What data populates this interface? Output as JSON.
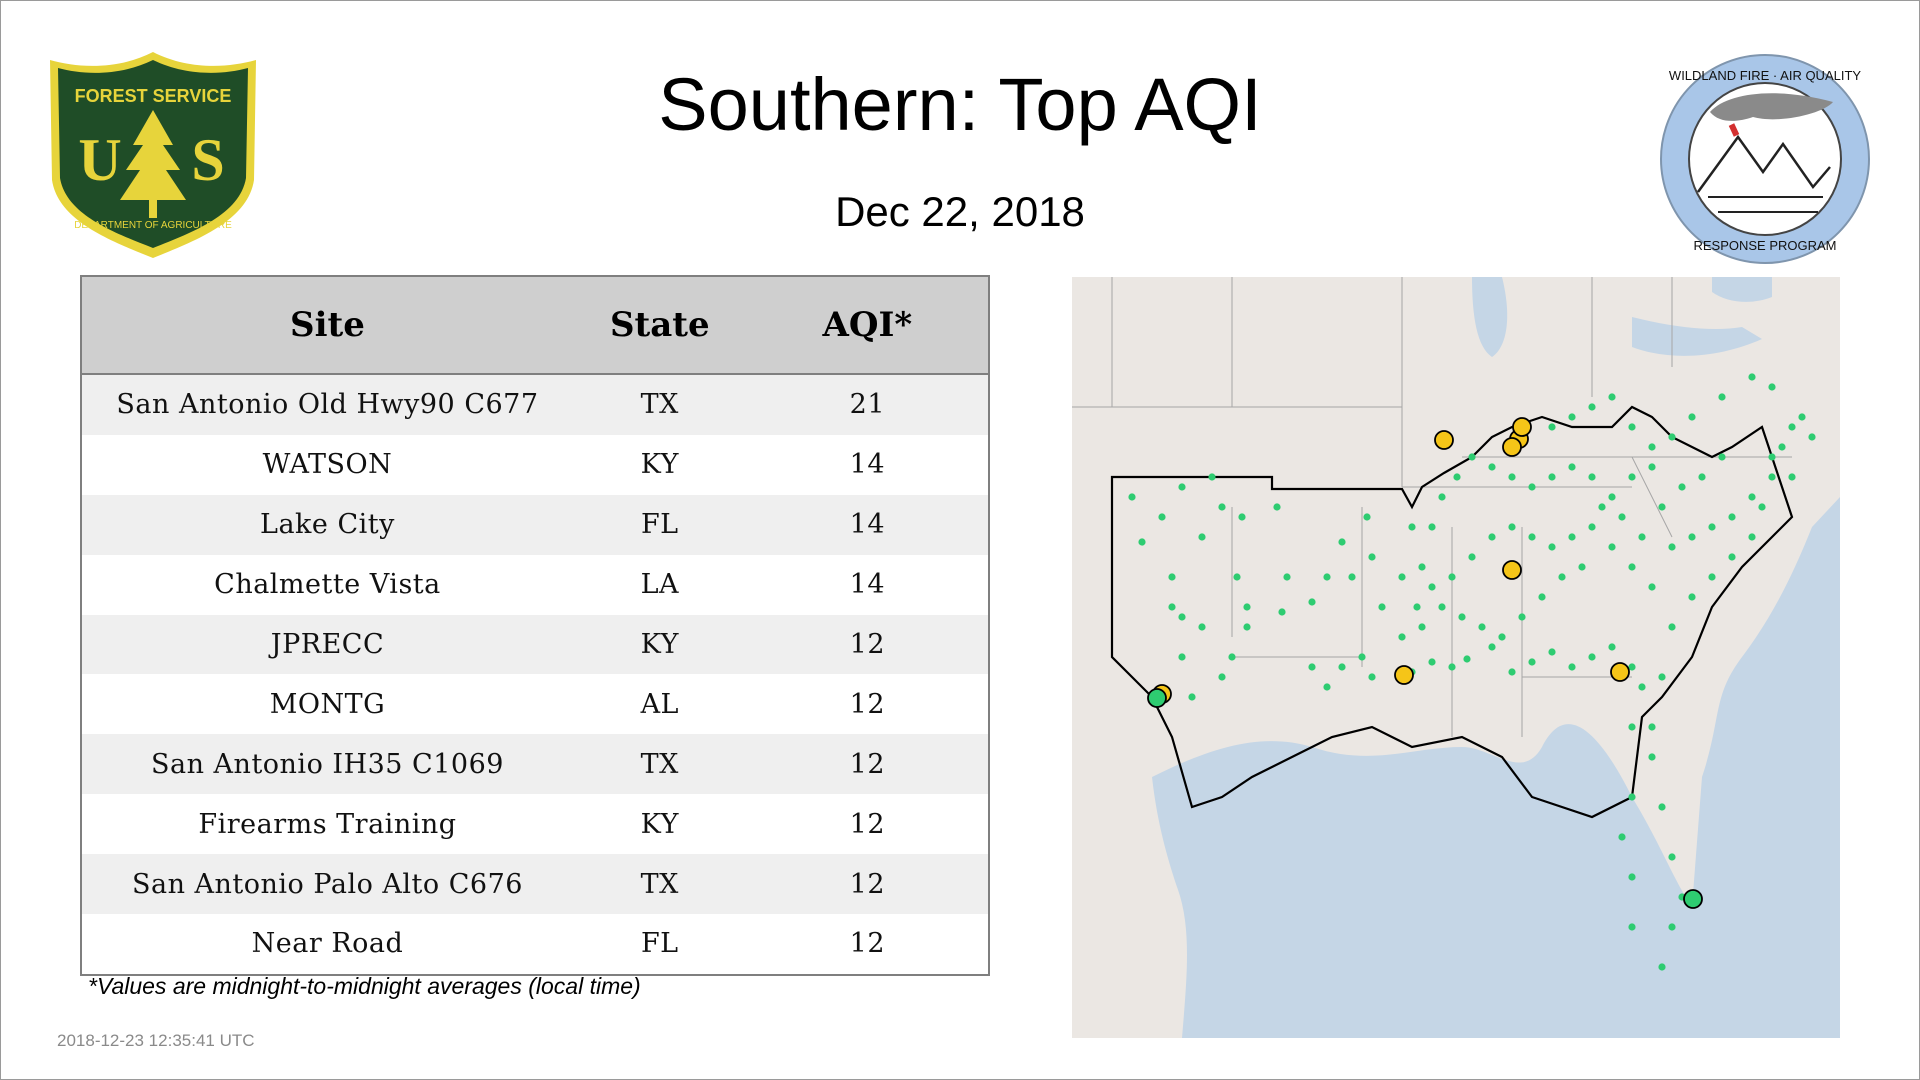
{
  "header": {
    "title": "Southern: Top AQI",
    "date": "Dec 22, 2018"
  },
  "logos": {
    "left": {
      "name": "forest-service-shield",
      "top_text": "FOREST SERVICE",
      "letters": "U S",
      "bottom_text": "DEPARTMENT OF AGRICULTURE",
      "color_dark": "#1f4d27",
      "color_gold": "#e7d43b"
    },
    "right": {
      "name": "wildland-fire-air-quality-seal",
      "top_text": "WILDLAND FIRE · AIR QUALITY",
      "bottom_text": "RESPONSE PROGRAM",
      "color_ring": "#a9c6e8"
    }
  },
  "table": {
    "headers": {
      "site": "Site",
      "state": "State",
      "aqi": "AQI*"
    },
    "rows": [
      {
        "site": "San Antonio Old Hwy90 C677",
        "state": "TX",
        "aqi": "21"
      },
      {
        "site": "WATSON",
        "state": "KY",
        "aqi": "14"
      },
      {
        "site": "Lake City",
        "state": "FL",
        "aqi": "14"
      },
      {
        "site": "Chalmette Vista",
        "state": "LA",
        "aqi": "14"
      },
      {
        "site": "JPRECC",
        "state": "KY",
        "aqi": "12"
      },
      {
        "site": "MONTG",
        "state": "AL",
        "aqi": "12"
      },
      {
        "site": "San Antonio IH35 C1069",
        "state": "TX",
        "aqi": "12"
      },
      {
        "site": "Firearms Training",
        "state": "KY",
        "aqi": "12"
      },
      {
        "site": "San Antonio Palo Alto C676",
        "state": "TX",
        "aqi": "12"
      },
      {
        "site": "Near Road",
        "state": "FL",
        "aqi": "12"
      }
    ]
  },
  "footnote": "*Values are midnight-to-midnight averages (local time)",
  "timestamp": "2018-12-23 12:35:41 UTC",
  "map": {
    "colors": {
      "land": "#ebe7e3",
      "water": "#c5d6e6",
      "lines": "#a6a6a6",
      "region": "#000000",
      "good": "#2ecc71",
      "moderate": "#f5c518"
    }
  }
}
